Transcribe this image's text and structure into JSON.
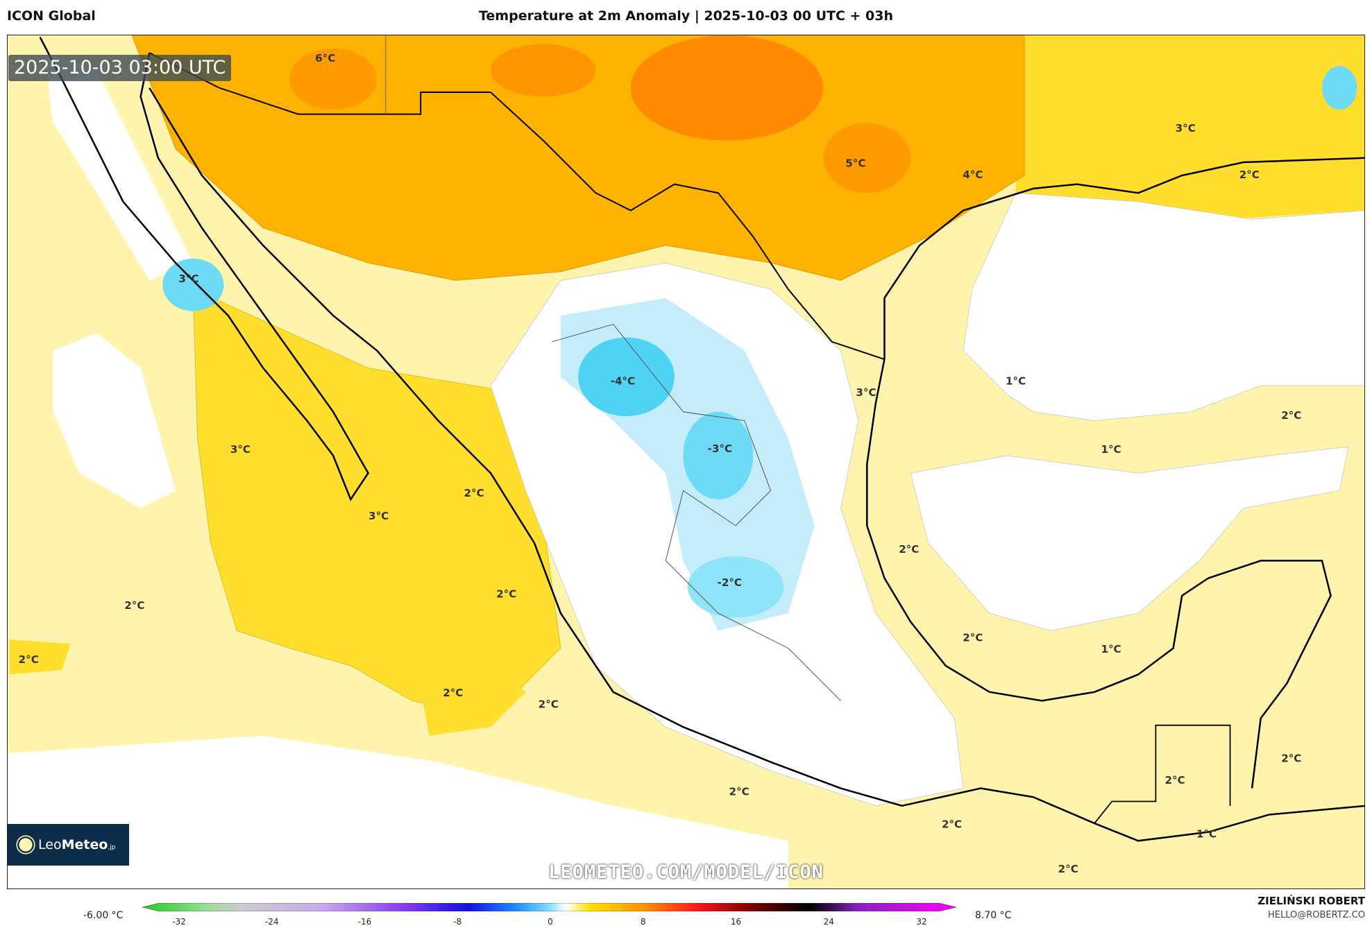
{
  "header": {
    "model": "ICON Global",
    "title": "Temperature at 2m Anomaly | 2025-10-03 00 UTC + 03h"
  },
  "map": {
    "valid_time": "2025-10-03 03:00 UTC",
    "watermark": "LEOMETEO.COM/MODEL/ICON",
    "logo_text": {
      "light": "Leo",
      "bold": "Meteo",
      "suffix": ".jp"
    },
    "labels": [
      "6°C",
      "3°C",
      "5°C",
      "4°C",
      "3°C",
      "2°C",
      "-4°C",
      "3°C",
      "1°C",
      "2°C",
      "3°C",
      "-3°C",
      "1°C",
      "2°C",
      "3°C",
      "2°C",
      "-2°C",
      "2°C",
      "2°C",
      "2°C",
      "2°C",
      "1°C",
      "2°C",
      "2°C",
      "2°C",
      "2°C",
      "2°C",
      "2°C",
      "2°C",
      "1°C"
    ],
    "colors": {
      "pale_yellow": "#fff4ad",
      "yellow": "#ffde2e",
      "orange": "#ffb300",
      "deep_orange": "#ff8a00",
      "light_blue": "#c4ecfa",
      "blue": "#4fd3f5"
    }
  },
  "colorbar": {
    "min_label": "-6.00 °C",
    "max_label": "8.70 °C",
    "ticks": [
      "-32",
      "-24",
      "-16",
      "-8",
      "0",
      "8",
      "16",
      "24",
      "32"
    ]
  },
  "footer": {
    "author": "ZIELIŃSKI ROBERT",
    "email": "HELLO@ROBERTZ.CO"
  }
}
